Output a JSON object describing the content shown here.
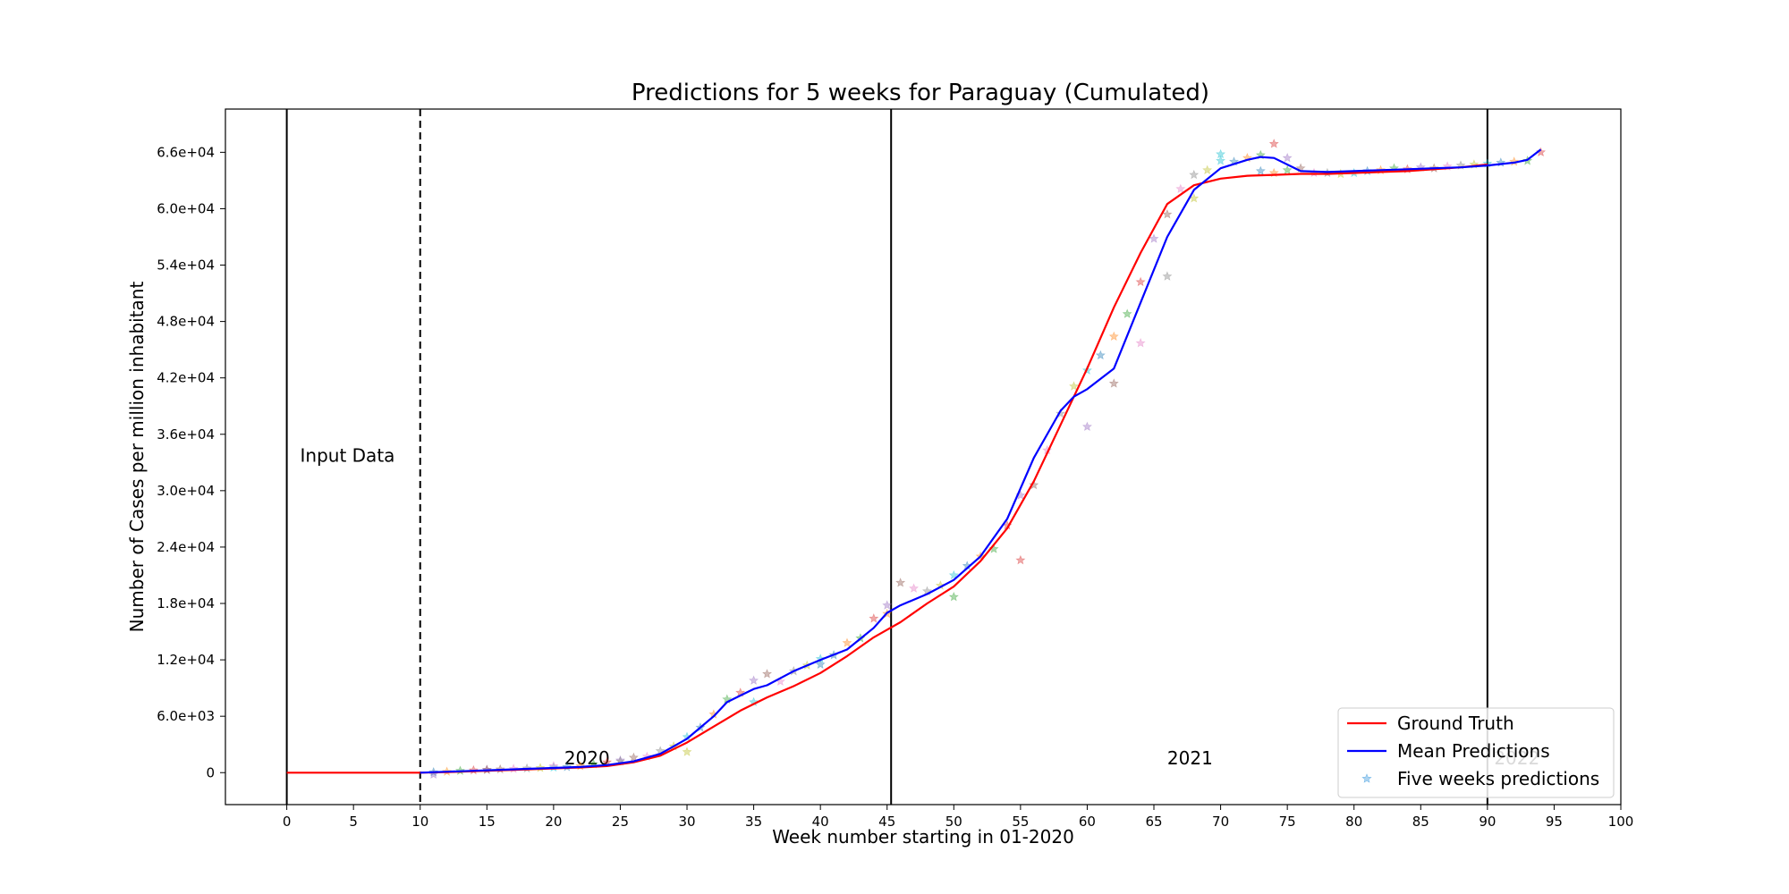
{
  "chart_data": {
    "type": "line",
    "title": "Predictions for 5 weeks for Paraguay (Cumulated)",
    "xlabel": "Week number starting in 01-2020",
    "ylabel": "Number of Cases per million inhabitant",
    "xlim": [
      -4.6,
      100
    ],
    "ylim": [
      -3400,
      70600
    ],
    "xticks": [
      0,
      5,
      10,
      15,
      20,
      25,
      30,
      35,
      40,
      45,
      50,
      55,
      60,
      65,
      70,
      75,
      80,
      85,
      90,
      95,
      100
    ],
    "xtick_labels": [
      "0",
      "5",
      "10",
      "15",
      "20",
      "25",
      "30",
      "35",
      "40",
      "45",
      "50",
      "55",
      "60",
      "65",
      "70",
      "75",
      "80",
      "85",
      "90",
      "95",
      "100"
    ],
    "yticks": [
      0,
      6000,
      12000,
      18000,
      24000,
      30000,
      36000,
      42000,
      48000,
      54000,
      60000,
      66000
    ],
    "ytick_labels": [
      "0",
      "6.0e+03",
      "1.2e+04",
      "1.8e+04",
      "2.4e+04",
      "3.0e+04",
      "3.6e+04",
      "4.2e+04",
      "4.8e+04",
      "5.4e+04",
      "6.0e+04",
      "6.6e+04"
    ],
    "grid": false,
    "legend_position": "bottom-right",
    "vertical_lines": [
      {
        "x": 0,
        "style": "solid"
      },
      {
        "x": 10,
        "style": "dashed"
      },
      {
        "x": 45.3,
        "style": "solid"
      },
      {
        "x": 90,
        "style": "solid"
      }
    ],
    "annotations": [
      {
        "text": "Input Data",
        "x": 1,
        "y": 32500,
        "color": "#000000"
      },
      {
        "text": "2020",
        "x": 20.8,
        "y": 300,
        "color": "#000000"
      },
      {
        "text": "2021",
        "x": 66,
        "y": 300,
        "color": "#000000"
      },
      {
        "text": "2022",
        "x": 90.5,
        "y": 300,
        "color": "#c8c8c8"
      }
    ],
    "series": [
      {
        "name": "Ground Truth",
        "color": "#ff0000",
        "x": [
          0,
          2,
          4,
          6,
          8,
          10,
          12,
          14,
          16,
          18,
          20,
          22,
          24,
          26,
          28,
          30,
          32,
          34,
          36,
          38,
          40,
          42,
          44,
          45,
          46,
          48,
          50,
          52,
          54,
          56,
          58,
          60,
          62,
          64,
          66,
          68,
          70,
          72,
          74,
          76,
          78,
          80,
          82,
          84,
          86,
          88,
          90
        ],
        "y": [
          0,
          0,
          0,
          0,
          0,
          0,
          50,
          150,
          250,
          350,
          450,
          550,
          700,
          1100,
          1800,
          3200,
          4900,
          6600,
          8000,
          9200,
          10600,
          12400,
          14400,
          15200,
          16000,
          18000,
          19800,
          22500,
          26000,
          31000,
          37000,
          43000,
          49500,
          55300,
          60500,
          62500,
          63200,
          63500,
          63600,
          63700,
          63700,
          63800,
          63900,
          64000,
          64200,
          64400,
          64700
        ]
      },
      {
        "name": "Mean Predictions",
        "color": "#0000ff",
        "x": [
          10,
          12,
          14,
          16,
          18,
          20,
          22,
          24,
          26,
          28,
          30,
          32,
          33,
          34,
          35,
          36,
          38,
          40,
          42,
          44,
          45,
          46,
          48,
          50,
          52,
          54,
          56,
          58,
          59,
          60,
          62,
          64,
          66,
          68,
          70,
          72,
          73,
          74,
          76,
          78,
          80,
          82,
          84,
          86,
          88,
          90,
          92,
          93,
          94
        ],
        "y": [
          0,
          100,
          200,
          300,
          400,
          500,
          600,
          800,
          1200,
          2000,
          3600,
          6000,
          7500,
          8200,
          8900,
          9300,
          10800,
          12000,
          13100,
          15400,
          17000,
          17800,
          19000,
          20500,
          23000,
          27000,
          33500,
          38500,
          40000,
          40800,
          43000,
          50000,
          57000,
          62000,
          64300,
          65200,
          65500,
          65400,
          64000,
          63900,
          64000,
          64100,
          64200,
          64300,
          64400,
          64600,
          64900,
          65200,
          66300
        ]
      }
    ],
    "scatter": {
      "name": "Five weeks predictions",
      "marker": "star",
      "color": "#76b8e8",
      "x": [
        11,
        12,
        13,
        14,
        15,
        16,
        17,
        18,
        19,
        20,
        21,
        22,
        23,
        24,
        25,
        26,
        27,
        28,
        29,
        30,
        31,
        32,
        33,
        34,
        35,
        36,
        37,
        38,
        39,
        40,
        41,
        42,
        43,
        44,
        45,
        46,
        47,
        48,
        49,
        50,
        51,
        52,
        53,
        54,
        55,
        56,
        57,
        58,
        59,
        60,
        61,
        62,
        63,
        64,
        65,
        66,
        67,
        68,
        69,
        70,
        71,
        72,
        73,
        74,
        75,
        76,
        77,
        78,
        79,
        80,
        81,
        82,
        83,
        84,
        85,
        86,
        87,
        88,
        89,
        90,
        91,
        92,
        93,
        94,
        11,
        15,
        20,
        25,
        30,
        35,
        40,
        45,
        50,
        55,
        60,
        62,
        64,
        66,
        68,
        70,
        73,
        74,
        75
      ],
      "y": [
        50,
        100,
        200,
        250,
        300,
        350,
        400,
        450,
        500,
        550,
        600,
        700,
        900,
        1100,
        1300,
        1600,
        1700,
        2300,
        2800,
        3800,
        4800,
        6200,
        7800,
        8500,
        9800,
        10500,
        9700,
        10800,
        11400,
        12100,
        12500,
        13800,
        14300,
        16400,
        17800,
        20200,
        19600,
        19300,
        19900,
        21000,
        22000,
        23000,
        23800,
        26300,
        29500,
        30600,
        34300,
        38200,
        41100,
        42800,
        44400,
        46400,
        48800,
        52200,
        56800,
        59400,
        62100,
        63600,
        64100,
        65100,
        65000,
        65400,
        65700,
        66900,
        65400,
        64300,
        63800,
        63800,
        63700,
        63800,
        64000,
        64100,
        64300,
        64200,
        64400,
        64300,
        64500,
        64600,
        64700,
        64800,
        64900,
        65000,
        65100,
        66000,
        -200,
        300,
        700,
        1200,
        2200,
        7500,
        11500,
        16900,
        18700,
        22600,
        36800,
        41400,
        45700,
        52800,
        61100,
        65800,
        64000,
        63800,
        64100
      ],
      "colors": [
        "#1f77b4",
        "#ff7f0e",
        "#2ca02c",
        "#d62728",
        "#9467bd",
        "#8c564b",
        "#e377c2",
        "#7f7f7f",
        "#bcbd22",
        "#17becf"
      ]
    }
  }
}
